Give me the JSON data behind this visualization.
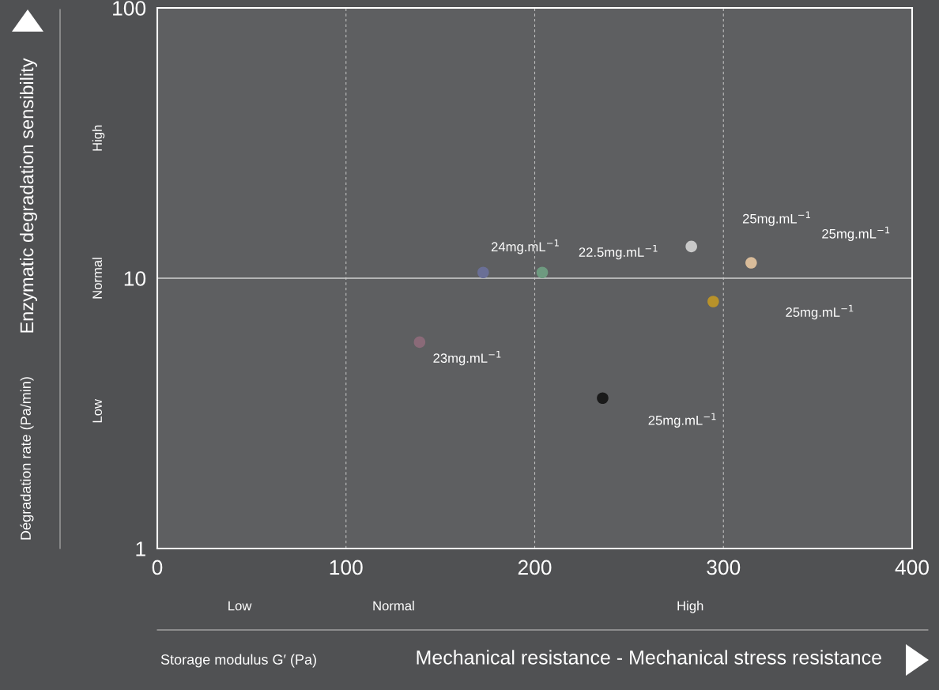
{
  "chart_data": {
    "type": "scatter",
    "x": [
      139,
      172.7,
      204,
      236,
      283,
      294.6,
      314.7
    ],
    "values": [
      5.8,
      10.5,
      10.5,
      3.6,
      13.1,
      8.2,
      11.4
    ],
    "colors": [
      "#8a6a78",
      "#6a6f96",
      "#6e9a80",
      "#1a1a1a",
      "#c8c8c8",
      "#b8922a",
      "#d9bc9a"
    ],
    "marker": "circle",
    "xlim": [
      0,
      400
    ],
    "xticks": [
      0,
      100,
      200,
      300,
      400
    ],
    "ylim": [
      1,
      100
    ],
    "yticks": [
      1,
      10,
      100
    ],
    "log": true,
    "grid": "x",
    "legend": false,
    "ref_lines": [
      {
        "axis": "y",
        "value": 10,
        "color": "#d0d0d0"
      }
    ],
    "annotations": [
      "Enzymatic degradation sensibility",
      "Mechanical resistance - Mechanical stress resistance",
      "Dégradation rate (Pa/min)",
      "Storage modulus G′ (Pa)",
      "High",
      "Normal",
      "Low",
      "Low",
      "Normal",
      "High",
      "24mg.mL$^{−1}$",
      "22.5mg.mL$^{−1}$",
      "25mg.mL$^{−1}$",
      "25mg.mL$^{−1}$",
      "25mg.mL$^{−1}$",
      "23mg.mL$^{−1}$",
      "25mg.mL$^{−1}$"
    ]
  }
}
